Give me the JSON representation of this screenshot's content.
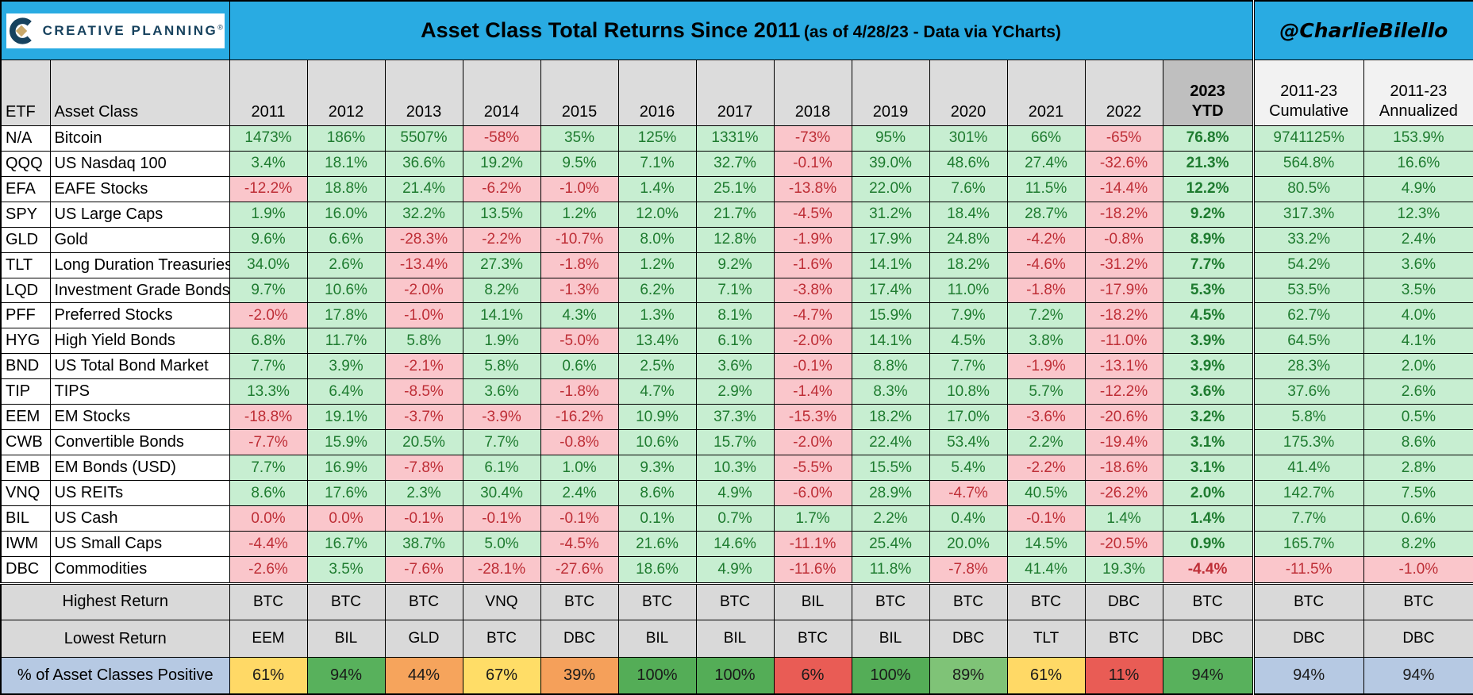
{
  "header": {
    "logo_text": "CREATIVE PLANNING",
    "logo_reg": "®",
    "title_main": "Asset Class Total Returns Since 2011",
    "title_sub": "(as of 4/28/23 - Data via YCharts)",
    "credit": "@CharlieBilello"
  },
  "colors": {
    "title_bar": "#29ABE2",
    "positive_bg": "#C7EED1",
    "positive_text": "#1E7B2F",
    "negative_bg": "#FAC6CB",
    "negative_text": "#BE2E36",
    "header_grey": "#DCDCDC",
    "ytd_header_grey": "#BFBFBF",
    "summary_grey": "#D9D9D9",
    "summary_blue": "#B6C9E3",
    "logo_navy": "#17425E",
    "logo_gold": "#C9A86A"
  },
  "chart_data": {
    "type": "table",
    "columns": {
      "etf": "ETF",
      "asset_class": "Asset Class",
      "years": [
        "2011",
        "2012",
        "2013",
        "2014",
        "2015",
        "2016",
        "2017",
        "2018",
        "2019",
        "2020",
        "2021",
        "2022"
      ],
      "ytd": [
        "2023",
        "YTD"
      ],
      "cumulative": [
        "2011-23",
        "Cumulative"
      ],
      "annualized": [
        "2011-23",
        "Annualized"
      ]
    },
    "rows": [
      {
        "etf": "N/A",
        "asset_class": "Bitcoin",
        "values": [
          "1473%",
          "186%",
          "5507%",
          "-58%",
          "35%",
          "125%",
          "1331%",
          "-73%",
          "95%",
          "301%",
          "66%",
          "-65%"
        ],
        "ytd": "76.8%",
        "cumulative": "9741125%",
        "annualized": "153.9%"
      },
      {
        "etf": "QQQ",
        "asset_class": "US Nasdaq 100",
        "values": [
          "3.4%",
          "18.1%",
          "36.6%",
          "19.2%",
          "9.5%",
          "7.1%",
          "32.7%",
          "-0.1%",
          "39.0%",
          "48.6%",
          "27.4%",
          "-32.6%"
        ],
        "ytd": "21.3%",
        "cumulative": "564.8%",
        "annualized": "16.6%"
      },
      {
        "etf": "EFA",
        "asset_class": "EAFE Stocks",
        "values": [
          "-12.2%",
          "18.8%",
          "21.4%",
          "-6.2%",
          "-1.0%",
          "1.4%",
          "25.1%",
          "-13.8%",
          "22.0%",
          "7.6%",
          "11.5%",
          "-14.4%"
        ],
        "ytd": "12.2%",
        "cumulative": "80.5%",
        "annualized": "4.9%"
      },
      {
        "etf": "SPY",
        "asset_class": "US Large Caps",
        "values": [
          "1.9%",
          "16.0%",
          "32.2%",
          "13.5%",
          "1.2%",
          "12.0%",
          "21.7%",
          "-4.5%",
          "31.2%",
          "18.4%",
          "28.7%",
          "-18.2%"
        ],
        "ytd": "9.2%",
        "cumulative": "317.3%",
        "annualized": "12.3%"
      },
      {
        "etf": "GLD",
        "asset_class": "Gold",
        "values": [
          "9.6%",
          "6.6%",
          "-28.3%",
          "-2.2%",
          "-10.7%",
          "8.0%",
          "12.8%",
          "-1.9%",
          "17.9%",
          "24.8%",
          "-4.2%",
          "-0.8%"
        ],
        "ytd": "8.9%",
        "cumulative": "33.2%",
        "annualized": "2.4%"
      },
      {
        "etf": "TLT",
        "asset_class": "Long Duration Treasuries",
        "values": [
          "34.0%",
          "2.6%",
          "-13.4%",
          "27.3%",
          "-1.8%",
          "1.2%",
          "9.2%",
          "-1.6%",
          "14.1%",
          "18.2%",
          "-4.6%",
          "-31.2%"
        ],
        "ytd": "7.7%",
        "cumulative": "54.2%",
        "annualized": "3.6%"
      },
      {
        "etf": "LQD",
        "asset_class": "Investment Grade Bonds",
        "values": [
          "9.7%",
          "10.6%",
          "-2.0%",
          "8.2%",
          "-1.3%",
          "6.2%",
          "7.1%",
          "-3.8%",
          "17.4%",
          "11.0%",
          "-1.8%",
          "-17.9%"
        ],
        "ytd": "5.3%",
        "cumulative": "53.5%",
        "annualized": "3.5%"
      },
      {
        "etf": "PFF",
        "asset_class": "Preferred Stocks",
        "values": [
          "-2.0%",
          "17.8%",
          "-1.0%",
          "14.1%",
          "4.3%",
          "1.3%",
          "8.1%",
          "-4.7%",
          "15.9%",
          "7.9%",
          "7.2%",
          "-18.2%"
        ],
        "ytd": "4.5%",
        "cumulative": "62.7%",
        "annualized": "4.0%"
      },
      {
        "etf": "HYG",
        "asset_class": "High Yield Bonds",
        "values": [
          "6.8%",
          "11.7%",
          "5.8%",
          "1.9%",
          "-5.0%",
          "13.4%",
          "6.1%",
          "-2.0%",
          "14.1%",
          "4.5%",
          "3.8%",
          "-11.0%"
        ],
        "ytd": "3.9%",
        "cumulative": "64.5%",
        "annualized": "4.1%"
      },
      {
        "etf": "BND",
        "asset_class": "US Total Bond Market",
        "values": [
          "7.7%",
          "3.9%",
          "-2.1%",
          "5.8%",
          "0.6%",
          "2.5%",
          "3.6%",
          "-0.1%",
          "8.8%",
          "7.7%",
          "-1.9%",
          "-13.1%"
        ],
        "ytd": "3.9%",
        "cumulative": "28.3%",
        "annualized": "2.0%"
      },
      {
        "etf": "TIP",
        "asset_class": "TIPS",
        "values": [
          "13.3%",
          "6.4%",
          "-8.5%",
          "3.6%",
          "-1.8%",
          "4.7%",
          "2.9%",
          "-1.4%",
          "8.3%",
          "10.8%",
          "5.7%",
          "-12.2%"
        ],
        "ytd": "3.6%",
        "cumulative": "37.6%",
        "annualized": "2.6%"
      },
      {
        "etf": "EEM",
        "asset_class": "EM Stocks",
        "values": [
          "-18.8%",
          "19.1%",
          "-3.7%",
          "-3.9%",
          "-16.2%",
          "10.9%",
          "37.3%",
          "-15.3%",
          "18.2%",
          "17.0%",
          "-3.6%",
          "-20.6%"
        ],
        "ytd": "3.2%",
        "cumulative": "5.8%",
        "annualized": "0.5%"
      },
      {
        "etf": "CWB",
        "asset_class": "Convertible Bonds",
        "values": [
          "-7.7%",
          "15.9%",
          "20.5%",
          "7.7%",
          "-0.8%",
          "10.6%",
          "15.7%",
          "-2.0%",
          "22.4%",
          "53.4%",
          "2.2%",
          "-19.4%"
        ],
        "ytd": "3.1%",
        "cumulative": "175.3%",
        "annualized": "8.6%"
      },
      {
        "etf": "EMB",
        "asset_class": "EM Bonds (USD)",
        "values": [
          "7.7%",
          "16.9%",
          "-7.8%",
          "6.1%",
          "1.0%",
          "9.3%",
          "10.3%",
          "-5.5%",
          "15.5%",
          "5.4%",
          "-2.2%",
          "-18.6%"
        ],
        "ytd": "3.1%",
        "cumulative": "41.4%",
        "annualized": "2.8%"
      },
      {
        "etf": "VNQ",
        "asset_class": "US REITs",
        "values": [
          "8.6%",
          "17.6%",
          "2.3%",
          "30.4%",
          "2.4%",
          "8.6%",
          "4.9%",
          "-6.0%",
          "28.9%",
          "-4.7%",
          "40.5%",
          "-26.2%"
        ],
        "ytd": "2.0%",
        "cumulative": "142.7%",
        "annualized": "7.5%"
      },
      {
        "etf": "BIL",
        "asset_class": "US Cash",
        "values": [
          "0.0%",
          "0.0%",
          "-0.1%",
          "-0.1%",
          "-0.1%",
          "0.1%",
          "0.7%",
          "1.7%",
          "2.2%",
          "0.4%",
          "-0.1%",
          "1.4%"
        ],
        "ytd": "1.4%",
        "cumulative": "7.7%",
        "annualized": "0.6%"
      },
      {
        "etf": "IWM",
        "asset_class": "US Small Caps",
        "values": [
          "-4.4%",
          "16.7%",
          "38.7%",
          "5.0%",
          "-4.5%",
          "21.6%",
          "14.6%",
          "-11.1%",
          "25.4%",
          "20.0%",
          "14.5%",
          "-20.5%"
        ],
        "ytd": "0.9%",
        "cumulative": "165.7%",
        "annualized": "8.2%"
      },
      {
        "etf": "DBC",
        "asset_class": "Commodities",
        "values": [
          "-2.6%",
          "3.5%",
          "-7.6%",
          "-28.1%",
          "-27.6%",
          "18.6%",
          "4.9%",
          "-11.6%",
          "11.8%",
          "-7.8%",
          "41.4%",
          "19.3%"
        ],
        "ytd": "-4.4%",
        "cumulative": "-11.5%",
        "annualized": "-1.0%"
      }
    ],
    "summary": {
      "highest": {
        "label": "Highest Return",
        "values": [
          "BTC",
          "BTC",
          "BTC",
          "VNQ",
          "BTC",
          "BTC",
          "BTC",
          "BIL",
          "BTC",
          "BTC",
          "BTC",
          "DBC",
          "BTC",
          "BTC",
          "BTC"
        ]
      },
      "lowest": {
        "label": "Lowest Return",
        "values": [
          "EEM",
          "BIL",
          "GLD",
          "BTC",
          "DBC",
          "BIL",
          "BIL",
          "BTC",
          "BIL",
          "DBC",
          "TLT",
          "BTC",
          "DBC",
          "DBC",
          "DBC"
        ]
      },
      "pct_positive": {
        "label": "% of Asset Classes Positive",
        "values": [
          "61%",
          "94%",
          "44%",
          "67%",
          "39%",
          "100%",
          "100%",
          "6%",
          "100%",
          "89%",
          "61%",
          "11%",
          "94%",
          "94%",
          "94%"
        ],
        "colors": [
          "#FFD966",
          "#58B15C",
          "#F6A45C",
          "#FFDD67",
          "#F5A05A",
          "#54AD57",
          "#54AD57",
          "#E95C55",
          "#54AD57",
          "#7FC377",
          "#FFD966",
          "#E95C55",
          "#58B15C",
          "#B6C9E3",
          "#B6C9E3"
        ]
      }
    }
  }
}
